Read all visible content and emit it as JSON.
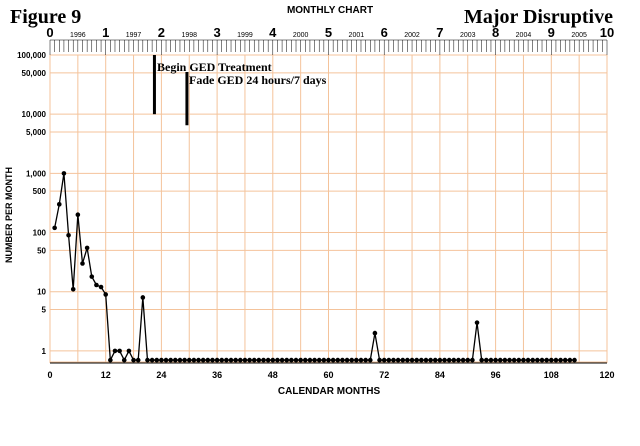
{
  "header": {
    "figure_label": "Figure 9",
    "chart_name": "MONTHLY CHART",
    "behavior_label": "Major Disruptive"
  },
  "annotations": {
    "begin": "Begin GED Treatment",
    "fade": "Fade GED 24 hours/7 days"
  },
  "chart_data": {
    "type": "line",
    "scale": "log",
    "xlabel": "CALENDAR MONTHS",
    "ylabel": "NUMBER PER MONTH",
    "xlim": [
      0,
      120
    ],
    "ylim": [
      0.625,
      100000
    ],
    "x_ticks": [
      "0",
      "12",
      "24",
      "36",
      "48",
      "60",
      "72",
      "84",
      "96",
      "108",
      "120"
    ],
    "y_ticks": [
      {
        "v": 100000,
        "label": "100,000"
      },
      {
        "v": 50000,
        "label": "50,000"
      },
      {
        "v": 10000,
        "label": "10,000"
      },
      {
        "v": 5000,
        "label": "5,000"
      },
      {
        "v": 1000,
        "label": "1,000"
      },
      {
        "v": 500,
        "label": "500"
      },
      {
        "v": 100,
        "label": "100"
      },
      {
        "v": 50,
        "label": "50"
      },
      {
        "v": 10,
        "label": "10"
      },
      {
        "v": 5,
        "label": "5"
      },
      {
        "v": 1,
        "label": "1"
      }
    ],
    "top_axis_years": [
      "0",
      "1",
      "2",
      "3",
      "4",
      "5",
      "6",
      "7",
      "8",
      "9",
      "10"
    ],
    "calendar_years": [
      "1996",
      "1997",
      "1998",
      "1999",
      "2000",
      "2001",
      "2002",
      "2003",
      "2004",
      "2005"
    ],
    "begin_treatment_month": 22.5,
    "fade_month": 29.5,
    "x": [
      1,
      2,
      3,
      4,
      5,
      6,
      7,
      8,
      9,
      10,
      11,
      12,
      13,
      14,
      15,
      16,
      17,
      18,
      19,
      20,
      21,
      22,
      23,
      24,
      25,
      26,
      27,
      28,
      29,
      30,
      31,
      32,
      33,
      34,
      35,
      36,
      37,
      38,
      39,
      40,
      41,
      42,
      43,
      44,
      45,
      46,
      47,
      48,
      49,
      50,
      51,
      52,
      53,
      54,
      55,
      56,
      57,
      58,
      59,
      60,
      61,
      62,
      63,
      64,
      65,
      66,
      67,
      68,
      69,
      70,
      71,
      72,
      73,
      74,
      75,
      76,
      77,
      78,
      79,
      80,
      81,
      82,
      83,
      84,
      85,
      86,
      87,
      88,
      89,
      90,
      91,
      92,
      93,
      94,
      95,
      96,
      97,
      98,
      99,
      100,
      101,
      102,
      103,
      104,
      105,
      106,
      107,
      108,
      109,
      110,
      111,
      112,
      113
    ],
    "values": [
      120,
      300,
      1000,
      90,
      11,
      200,
      30,
      55,
      18,
      13,
      12,
      9,
      0.7,
      1,
      1,
      0.7,
      1,
      0.7,
      0.7,
      8,
      0.7,
      0.7,
      0.7,
      0.7,
      0.7,
      0.7,
      0.7,
      0.7,
      0.7,
      0.7,
      0.7,
      0.7,
      0.7,
      0.7,
      0.7,
      0.7,
      0.7,
      0.7,
      0.7,
      0.7,
      0.7,
      0.7,
      0.7,
      0.7,
      0.7,
      0.7,
      0.7,
      0.7,
      0.7,
      0.7,
      0.7,
      0.7,
      0.7,
      0.7,
      0.7,
      0.7,
      0.7,
      0.7,
      0.7,
      0.7,
      0.7,
      0.7,
      0.7,
      0.7,
      0.7,
      0.7,
      0.7,
      0.7,
      0.7,
      2,
      0.7,
      0.7,
      0.7,
      0.7,
      0.7,
      0.7,
      0.7,
      0.7,
      0.7,
      0.7,
      0.7,
      0.7,
      0.7,
      0.7,
      0.7,
      0.7,
      0.7,
      0.7,
      0.7,
      0.7,
      0.7,
      3,
      0.7,
      0.7,
      0.7,
      0.7,
      0.7,
      0.7,
      0.7,
      0.7,
      0.7,
      0.7,
      0.7,
      0.7,
      0.7,
      0.7,
      0.7,
      0.7,
      0.7,
      0.7,
      0.7,
      0.7,
      0.7
    ],
    "colors": {
      "grid": "#f4c39b",
      "line": "#000000",
      "background": "#ffffff"
    }
  }
}
